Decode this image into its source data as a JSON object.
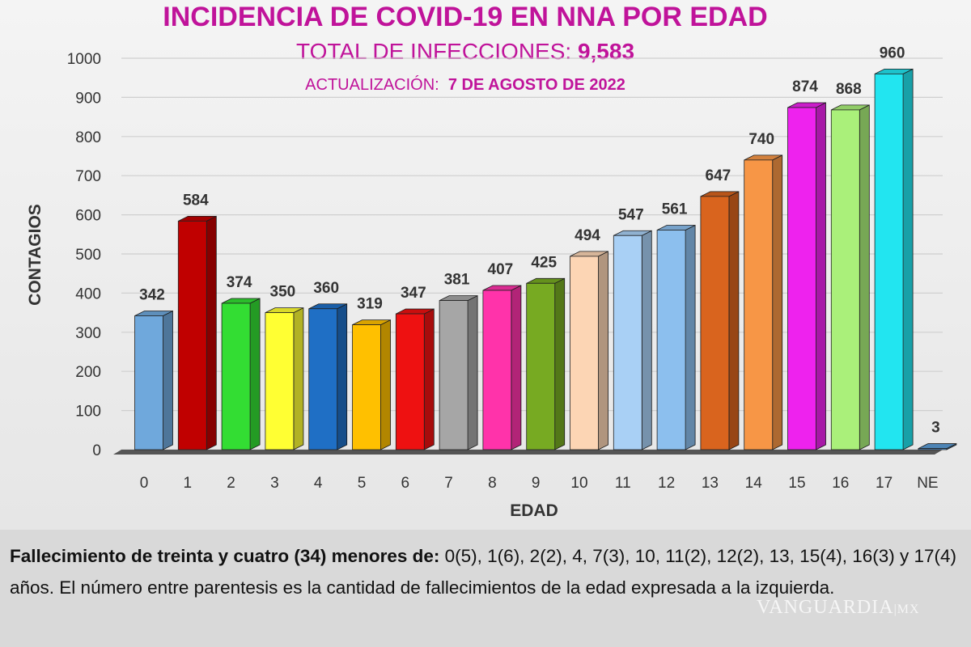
{
  "chart_data": {
    "type": "bar",
    "title": "INCIDENCIA DE COVID-19 EN NNA POR EDAD",
    "subtitle_label": "TOTAL DE INFECCIONES:",
    "subtitle_value": "9,583",
    "update_label": "ACTUALIZACIÓN:",
    "update_value": "7  DE AGOSTO DE 2022",
    "xlabel": "EDAD",
    "ylabel": "CONTAGIOS",
    "ylim": [
      0,
      1000
    ],
    "yticks": [
      0,
      100,
      200,
      300,
      400,
      500,
      600,
      700,
      800,
      900,
      1000
    ],
    "grid": true,
    "categories": [
      "0",
      "1",
      "2",
      "3",
      "4",
      "5",
      "6",
      "7",
      "8",
      "9",
      "10",
      "11",
      "12",
      "13",
      "14",
      "15",
      "16",
      "17",
      "NE"
    ],
    "values": [
      342,
      584,
      374,
      350,
      360,
      319,
      347,
      381,
      407,
      425,
      494,
      547,
      561,
      647,
      740,
      874,
      868,
      960,
      3
    ],
    "colors": [
      "#6fa8dc",
      "#c00000",
      "#33dd33",
      "#ffff33",
      "#1f6fc5",
      "#ffc000",
      "#ee1111",
      "#a6a6a6",
      "#ff33aa",
      "#77aa22",
      "#fcd5b4",
      "#a9d0f5",
      "#8cbfee",
      "#d9641e",
      "#f79646",
      "#ee22ee",
      "#aaf07a",
      "#22e5f0",
      "#5b9bd5"
    ]
  },
  "note": {
    "bold": "Fallecimiento de treinta y cuatro (34) menores de:",
    "text": " 0(5), 1(6), 2(2), 4, 7(3), 10, 11(2), 12(2), 13, 15(4), 16(3) y 17(4) años. El número entre parentesis es la cantidad de fallecimientos de la edad expresada a la izquierda."
  },
  "watermark": "VANGUARDIA MX"
}
